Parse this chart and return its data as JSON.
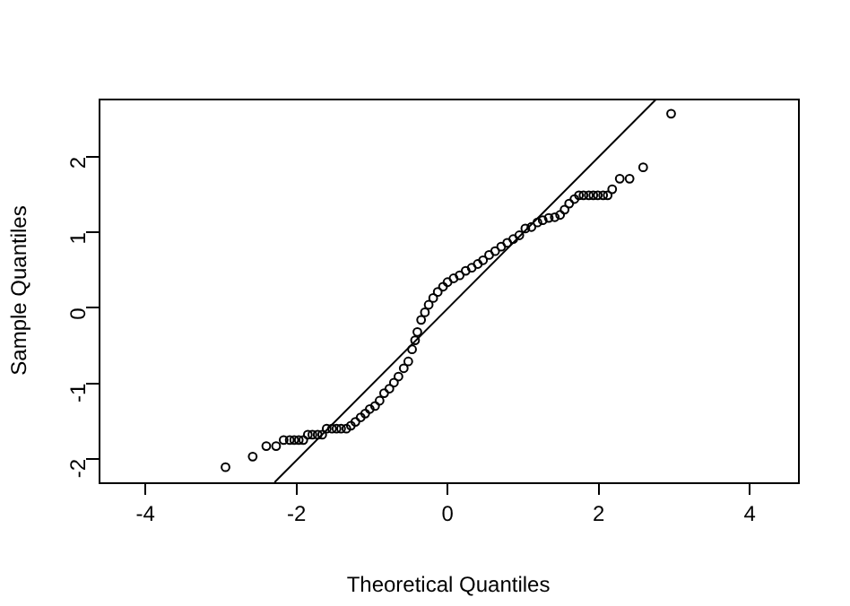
{
  "chart_data": {
    "type": "scatter",
    "xlabel": "Theoretical Quantiles",
    "ylabel": "Sample Quantiles",
    "xlim": [
      -4.62,
      4.64
    ],
    "ylim": [
      -2.31,
      2.77
    ],
    "xticks": [
      -4,
      -2,
      0,
      2,
      4
    ],
    "yticks": [
      -2,
      -1,
      0,
      1,
      2
    ],
    "grid": false,
    "legend": false,
    "marker": "circle",
    "series": [
      {
        "type": "scatter",
        "color": "#000000",
        "x": [
          -2.94,
          -2.58,
          -2.4,
          -2.27,
          -2.17,
          -2.09,
          -2.03,
          -1.97,
          -1.91,
          -1.85,
          -1.79,
          -1.72,
          -1.66,
          -1.6,
          -1.53,
          -1.47,
          -1.41,
          -1.34,
          -1.28,
          -1.22,
          -1.15,
          -1.09,
          -1.03,
          -0.96,
          -0.9,
          -0.84,
          -0.77,
          -0.71,
          -0.65,
          -0.58,
          -0.52,
          -0.47,
          -0.43,
          -0.4,
          -0.35,
          -0.3,
          -0.25,
          -0.19,
          -0.13,
          -0.06,
          0,
          0.08,
          0.16,
          0.24,
          0.32,
          0.4,
          0.47,
          0.55,
          0.63,
          0.71,
          0.79,
          0.87,
          0.95,
          1.03,
          1.11,
          1.19,
          1.26,
          1.34,
          1.42,
          1.49,
          1.55,
          1.61,
          1.68,
          1.74,
          1.8,
          1.87,
          1.93,
          1.99,
          2.06,
          2.12,
          2.18,
          2.28,
          2.41,
          2.59,
          2.96
        ],
        "values": [
          -2.11,
          -1.97,
          -1.83,
          -1.83,
          -1.75,
          -1.75,
          -1.75,
          -1.75,
          -1.75,
          -1.68,
          -1.68,
          -1.68,
          -1.68,
          -1.6,
          -1.6,
          -1.6,
          -1.6,
          -1.6,
          -1.56,
          -1.51,
          -1.45,
          -1.4,
          -1.34,
          -1.3,
          -1.23,
          -1.13,
          -1.07,
          -0.99,
          -0.91,
          -0.8,
          -0.71,
          -0.55,
          -0.43,
          -0.32,
          -0.16,
          -0.06,
          0.04,
          0.13,
          0.21,
          0.28,
          0.34,
          0.39,
          0.43,
          0.49,
          0.53,
          0.58,
          0.63,
          0.7,
          0.75,
          0.81,
          0.86,
          0.91,
          0.96,
          1.05,
          1.07,
          1.13,
          1.16,
          1.19,
          1.2,
          1.23,
          1.3,
          1.38,
          1.44,
          1.49,
          1.49,
          1.49,
          1.49,
          1.49,
          1.49,
          1.49,
          1.57,
          1.71,
          1.71,
          1.86,
          2.57
        ]
      },
      {
        "type": "line",
        "color": "#000000",
        "marker": "none",
        "x": [
          -2.29,
          2.77
        ],
        "values": [
          -2.31,
          2.77
        ]
      }
    ]
  }
}
